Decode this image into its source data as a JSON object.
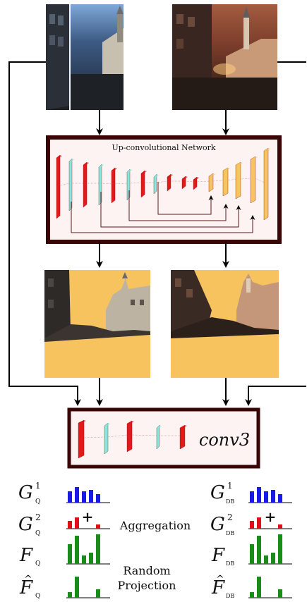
{
  "network": {
    "title": "Up-convolutional Network"
  },
  "fusion": {
    "label": "conv3"
  },
  "labels": {
    "aggregation": "Aggregation",
    "random": "Random",
    "projection": "Projection"
  },
  "symbols_left": {
    "g1": "G",
    "g1_sup": "1",
    "g1_sub": "Q",
    "g2": "G",
    "g2_sup": "2",
    "g2_sub": "Q",
    "f": "F",
    "f_sub": "Q",
    "fhat": "F",
    "fhat_sub": "Q"
  },
  "symbols_right": {
    "g1": "G",
    "g1_sup": "1",
    "g1_sub": "DB",
    "g2": "G",
    "g2_sup": "2",
    "g2_sub": "DB",
    "f": "F",
    "f_sub": "DB",
    "fhat": "F",
    "fhat_sub": "DB"
  },
  "plus_sign": "+",
  "colors": {
    "frame": "#3a0505",
    "layer_red": "#e01010",
    "layer_cyan": "#7fe8e0",
    "layer_orange": "#f6c25a",
    "mask_orange": "#f7c35f",
    "hist_blue": "#1a1ae6",
    "hist_red": "#e0101a",
    "hist_green": "#1a8c1a"
  },
  "histograms": {
    "g1": [
      16,
      22,
      16,
      18,
      12
    ],
    "g2_left": [
      11,
      16,
      0,
      0,
      6
    ],
    "g2_right": [
      11,
      16,
      0,
      0,
      6
    ],
    "f_left": [
      28,
      40,
      12,
      16,
      42
    ],
    "f_right": [
      28,
      40,
      12,
      16,
      42
    ],
    "fhat_left": [
      8,
      30,
      0,
      0,
      12
    ],
    "fhat_right": [
      8,
      30,
      0,
      0,
      12
    ]
  }
}
